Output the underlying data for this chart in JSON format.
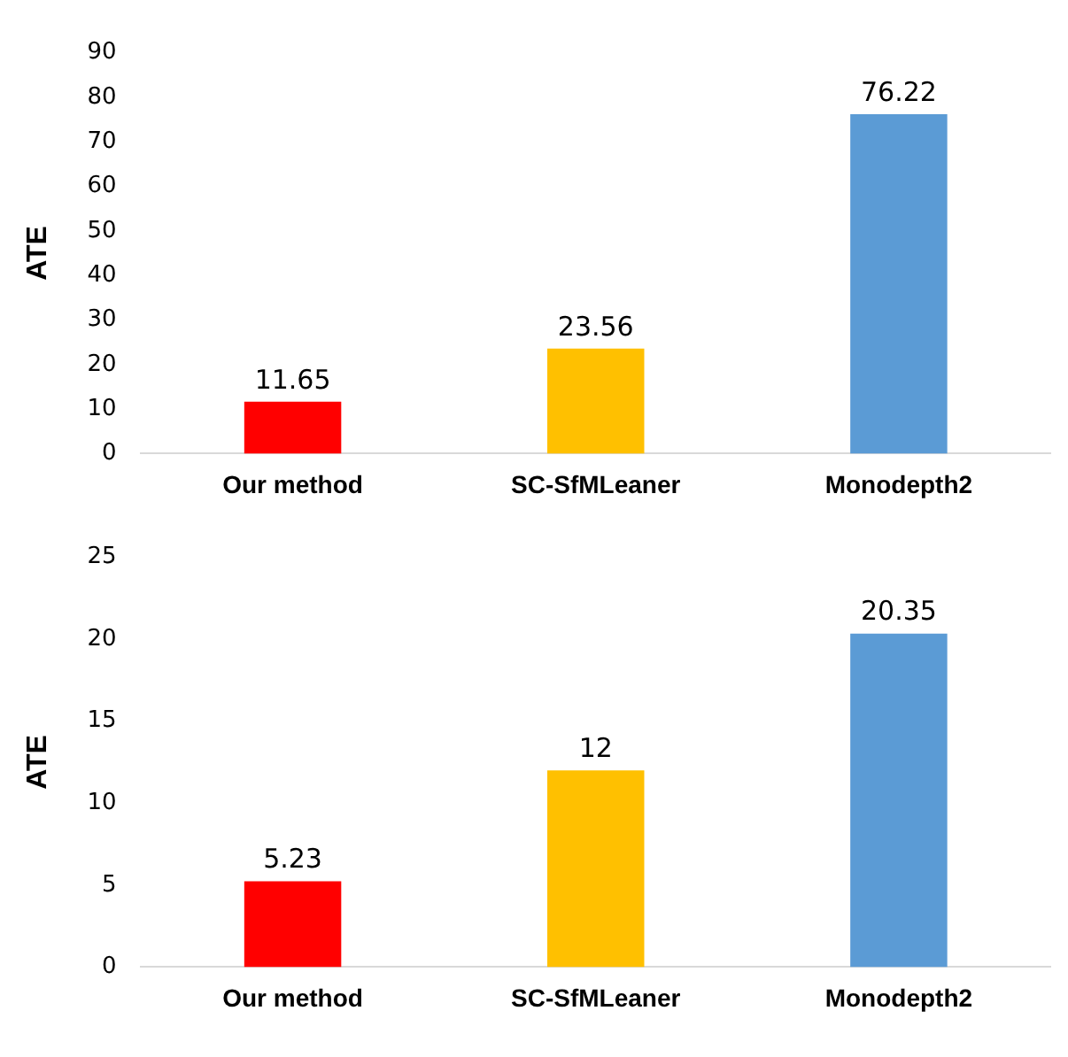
{
  "chart_data": [
    {
      "type": "bar",
      "ylabel": "ATE",
      "categories": [
        "Our method",
        "SC-SfMLeaner",
        "Monodepth2"
      ],
      "values": [
        11.65,
        23.56,
        76.22
      ],
      "colors": [
        "#ff0000",
        "#ffc000",
        "#5b9bd5"
      ],
      "ylim": [
        0,
        90
      ],
      "yticks": [
        0,
        10,
        20,
        30,
        40,
        50,
        60,
        70,
        80,
        90
      ],
      "grid": false,
      "data_labels": true
    },
    {
      "type": "bar",
      "ylabel": "ATE",
      "categories": [
        "Our method",
        "SC-SfMLeaner",
        "Monodepth2"
      ],
      "values": [
        5.23,
        12,
        20.35
      ],
      "colors": [
        "#ff0000",
        "#ffc000",
        "#5b9bd5"
      ],
      "ylim": [
        0,
        25
      ],
      "yticks": [
        0,
        5,
        10,
        15,
        20,
        25
      ],
      "grid": false,
      "data_labels": true
    }
  ]
}
